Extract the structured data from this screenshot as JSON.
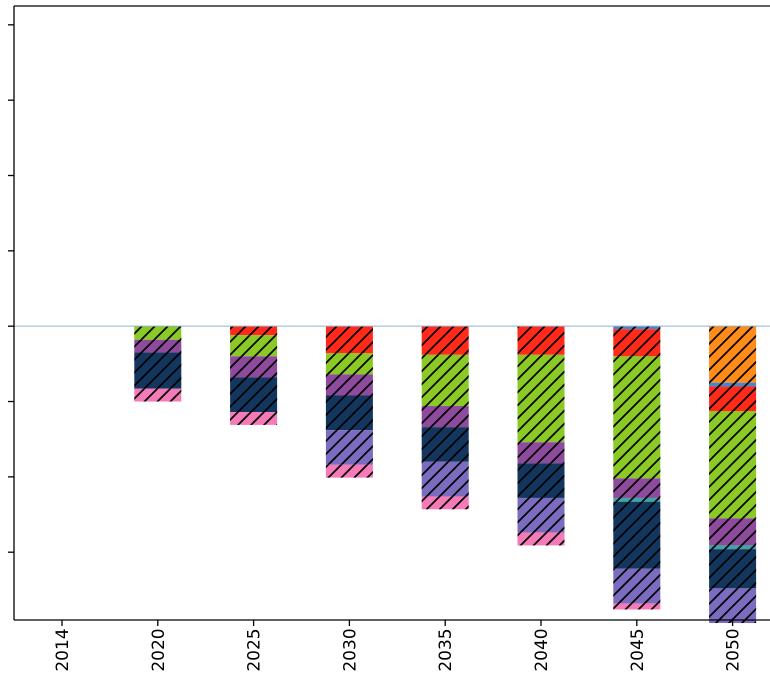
{
  "chart_data": {
    "type": "bar",
    "stacked": true,
    "hatched": true,
    "title": "",
    "xlabel": "",
    "ylabel": "",
    "categories": [
      "2014",
      "2020",
      "2025",
      "2030",
      "2035",
      "2040",
      "2045",
      "2050"
    ],
    "ylim": [
      -3.9,
      4.25
    ],
    "ytick_values": [
      -3,
      -2,
      -1,
      0,
      1,
      2,
      3,
      4
    ],
    "y_tick_labels_shown": false,
    "legend": "none",
    "series": [
      {
        "color": "#ff8c1a",
        "values": [
          0,
          0,
          0,
          0,
          0,
          0,
          0,
          -0.75
        ]
      },
      {
        "color": "#4a86c5",
        "values": [
          0,
          0,
          0,
          0,
          0,
          0,
          -0.04,
          -0.05
        ]
      },
      {
        "color": "#ff2a1a",
        "values": [
          0,
          0,
          -0.12,
          -0.36,
          -0.38,
          -0.38,
          -0.36,
          -0.33
        ]
      },
      {
        "color": "#8ac926",
        "values": [
          0,
          -0.18,
          -0.28,
          -0.28,
          -0.68,
          -1.16,
          -1.62,
          -1.42
        ]
      },
      {
        "color": "#8e4a9c",
        "values": [
          0,
          -0.17,
          -0.28,
          -0.28,
          -0.28,
          -0.28,
          -0.26,
          -0.36
        ]
      },
      {
        "color": "#3aa7a7",
        "values": [
          0,
          0,
          0,
          0,
          0,
          0,
          -0.05,
          -0.05
        ]
      },
      {
        "color": "#13365f",
        "values": [
          0,
          -0.48,
          -0.46,
          -0.46,
          -0.46,
          -0.46,
          -0.89,
          -0.52
        ]
      },
      {
        "color": "#7b6cc0",
        "values": [
          0,
          0,
          0,
          -0.46,
          -0.46,
          -0.46,
          -0.46,
          -0.46
        ]
      },
      {
        "color": "#f47ab8",
        "values": [
          0,
          -0.17,
          -0.17,
          -0.17,
          -0.17,
          -0.17,
          -0.08,
          0
        ]
      }
    ]
  }
}
